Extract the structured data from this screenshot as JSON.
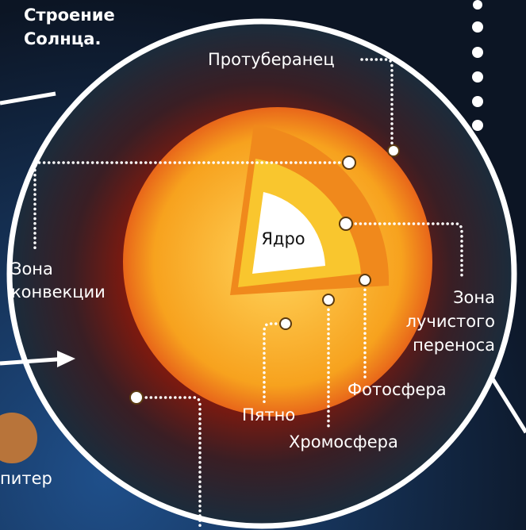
{
  "header": {
    "title": [
      "Строение",
      "Солнца."
    ]
  },
  "labels": {
    "prominence": "Протуберанец",
    "convection_zone": [
      "Зона",
      "конвекции"
    ],
    "core": "Ядро",
    "radiative_zone": [
      "Зона",
      "лучистого",
      "переноса"
    ],
    "photosphere": "Фотосфера",
    "spot": "Пятно",
    "chromosphere": "Хромосфера",
    "planet": "питер"
  }
}
